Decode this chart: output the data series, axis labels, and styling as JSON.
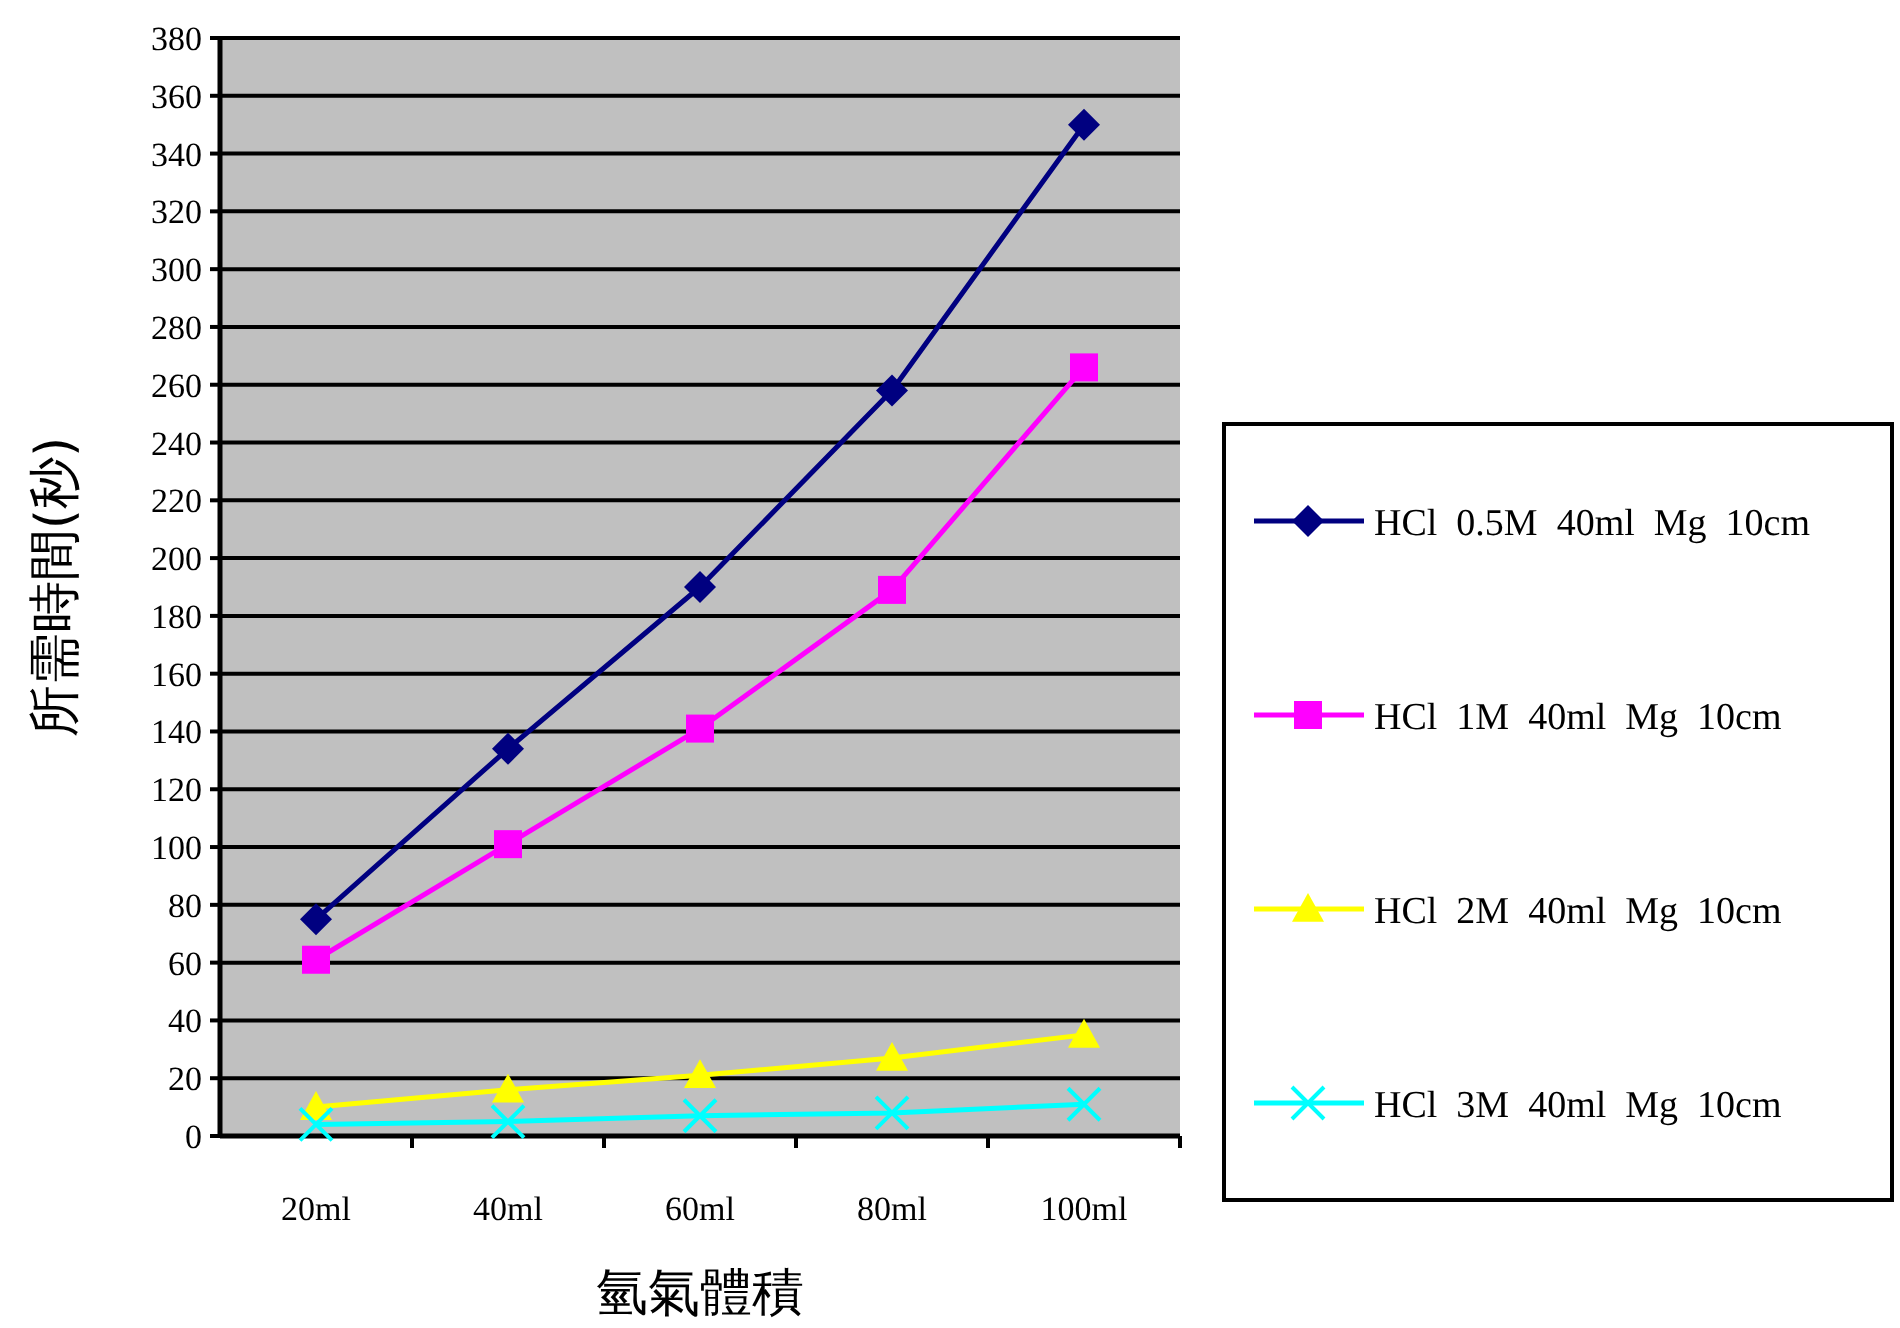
{
  "chart_data": {
    "type": "line",
    "xlabel": "氫氣體積",
    "ylabel": "所需時間(秒)",
    "categories": [
      "20ml",
      "40ml",
      "60ml",
      "80ml",
      "100ml"
    ],
    "series": [
      {
        "name": "HCl  0.5M  40ml  Mg  10cm",
        "color": "#000080",
        "marker": "diamond",
        "values": [
          75,
          134,
          190,
          258,
          350
        ]
      },
      {
        "name": "HCl  1M  40ml  Mg  10cm",
        "color": "#ff00ff",
        "marker": "square",
        "values": [
          61,
          101,
          141,
          189,
          266
        ]
      },
      {
        "name": "HCl  2M  40ml  Mg  10cm",
        "color": "#ffff00",
        "marker": "triangle",
        "values": [
          10,
          16,
          21,
          27,
          35
        ]
      },
      {
        "name": "HCl  3M  40ml  Mg  10cm",
        "color": "#00ffff",
        "marker": "cross",
        "values": [
          4,
          5,
          7,
          8,
          11
        ]
      }
    ],
    "ylim": [
      0,
      380
    ],
    "yticks": [
      0,
      20,
      40,
      60,
      80,
      100,
      120,
      140,
      160,
      180,
      200,
      220,
      240,
      260,
      280,
      300,
      320,
      340,
      360,
      380
    ],
    "grid": "y",
    "legend": "right",
    "line_style": "solid"
  }
}
